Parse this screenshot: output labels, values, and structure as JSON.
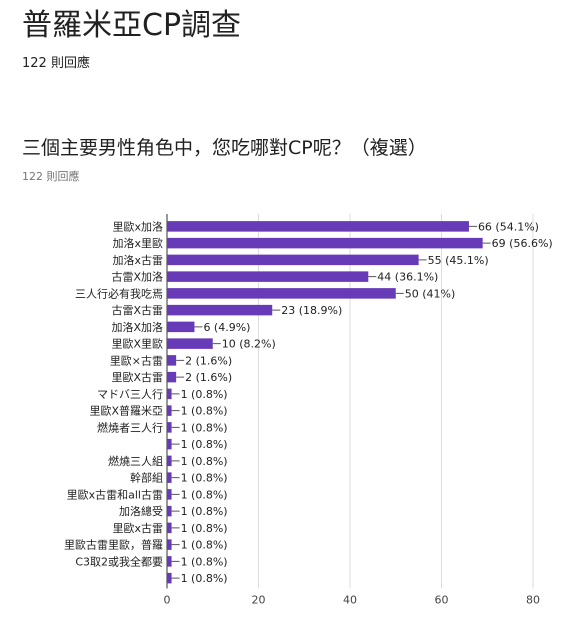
{
  "form": {
    "title": "普羅米亞CP調查",
    "responses": "122 則回應"
  },
  "question": {
    "title": "三個主要男性角色中，您吃哪對CP呢？（複選）",
    "responses": "122 則回應"
  },
  "colors": {
    "bar": "#673ab7",
    "grid": "#dddddd",
    "axis": "#333333"
  },
  "chart_data": {
    "type": "bar",
    "orientation": "horizontal",
    "categories": [
      "里歐x加洛",
      "加洛x里歐",
      "加洛x古雷",
      "古雷X加洛",
      "三人行必有我吃焉",
      "古雷X古雷",
      "加洛X加洛",
      "里歐X里歐",
      "里歐×古雷",
      "里歐X古雷",
      "マドバ三人行",
      "里歐X普羅米亞",
      "燃燒者三人行",
      "",
      "燃燒三人組",
      "幹部組",
      "里歐x古雷和all古雷",
      "加洛總受",
      "里歐x古雷",
      "里歐古雷里歐，普羅",
      "C3取2或我全都要",
      ""
    ],
    "values": [
      66,
      69,
      55,
      44,
      50,
      23,
      6,
      10,
      2,
      2,
      1,
      1,
      1,
      1,
      1,
      1,
      1,
      1,
      1,
      1,
      1,
      1
    ],
    "value_labels": [
      "66 (54.1%)",
      "69 (56.6%)",
      "55 (45.1%)",
      "44 (36.1%)",
      "50 (41%)",
      "23 (18.9%)",
      "6 (4.9%)",
      "10 (8.2%)",
      "2 (1.6%)",
      "2 (1.6%)",
      "1 (0.8%)",
      "1 (0.8%)",
      "1 (0.8%)",
      "1 (0.8%)",
      "1 (0.8%)",
      "1 (0.8%)",
      "1 (0.8%)",
      "1 (0.8%)",
      "1 (0.8%)",
      "1 (0.8%)",
      "1 (0.8%)",
      "1 (0.8%)"
    ],
    "xlim": [
      0,
      80
    ],
    "xticks": [
      "0",
      "20",
      "40",
      "60",
      "80"
    ],
    "grid": true
  }
}
